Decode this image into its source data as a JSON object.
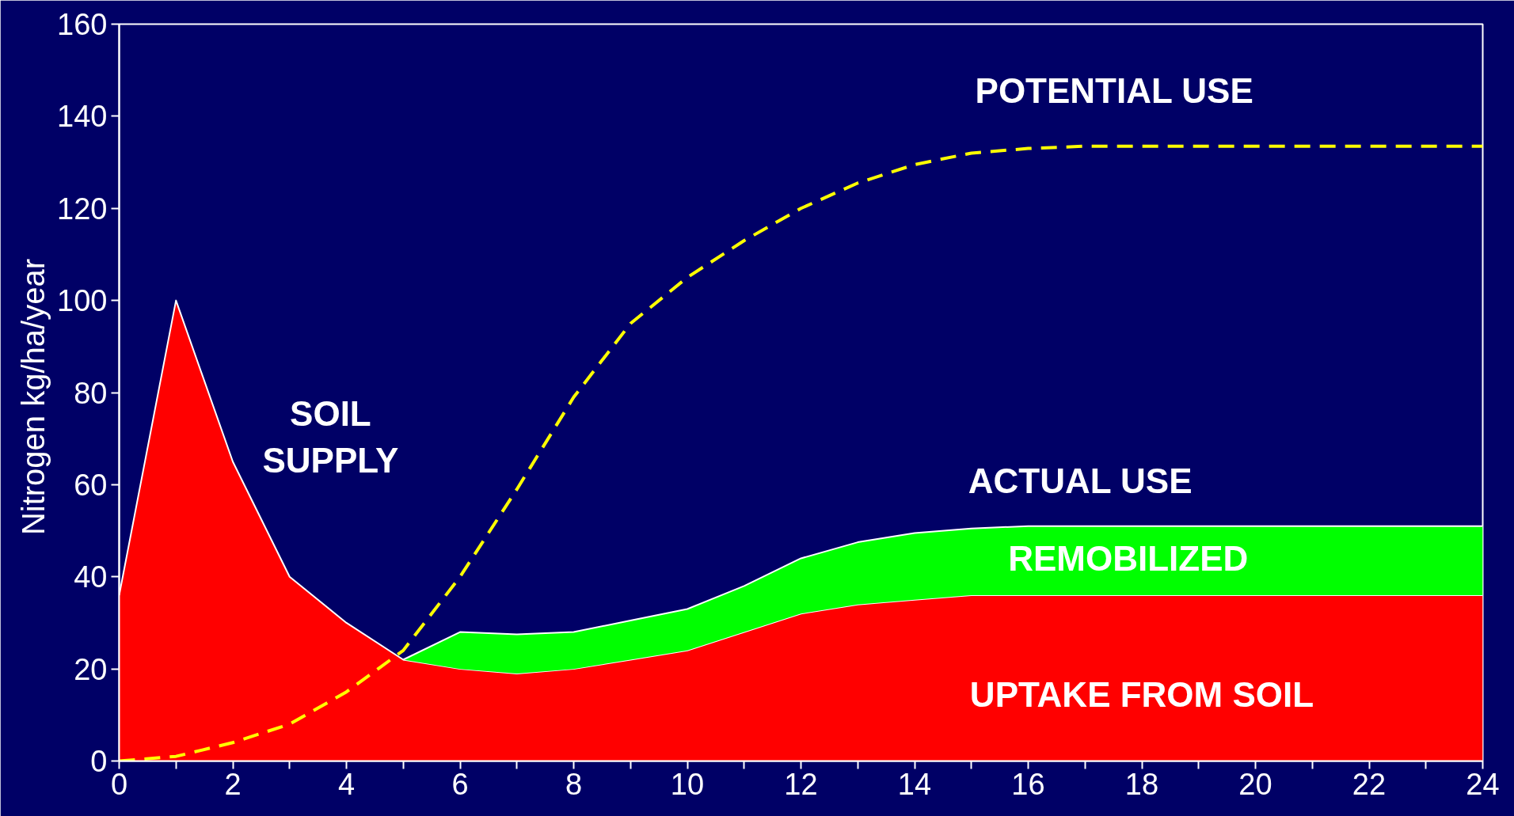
{
  "chart_data": {
    "type": "area",
    "ylabel": "Nitrogen  kg/ha/year",
    "x": [
      0,
      1,
      2,
      3,
      4,
      5,
      6,
      7,
      8,
      9,
      10,
      11,
      12,
      13,
      14,
      15,
      16,
      17,
      18,
      19,
      20,
      21,
      22,
      23,
      24
    ],
    "stacked": true,
    "series": [
      {
        "color": "#ff0000",
        "values": [
          36,
          100,
          65,
          40,
          30,
          22,
          20,
          19,
          20,
          22,
          24,
          28,
          32,
          34,
          35,
          36,
          36,
          36,
          36,
          36,
          36,
          36,
          36,
          36,
          36
        ]
      },
      {
        "color": "#00ff00",
        "values": [
          null,
          null,
          null,
          null,
          null,
          0,
          8,
          8.5,
          8,
          8.5,
          9,
          10,
          12,
          13.5,
          14.5,
          14.5,
          15,
          15,
          15,
          15,
          15,
          15,
          15,
          15,
          15
        ]
      },
      {
        "type": "line",
        "color": "#ffff00",
        "line_style": "dashed",
        "values": [
          0,
          1,
          4,
          8,
          15,
          24,
          40,
          59,
          79,
          95,
          105,
          113,
          120,
          125.5,
          129.5,
          132,
          133,
          133.5,
          133.5,
          133.5,
          133.5,
          133.5,
          133.5,
          133.5,
          133.5
        ]
      }
    ],
    "xlim": [
      0,
      24
    ],
    "ylim": [
      0,
      160
    ],
    "xticks": [
      0,
      {
        "value": 1,
        "label": null
      },
      2,
      {
        "value": 3,
        "label": null
      },
      4,
      {
        "value": 5,
        "label": null
      },
      6,
      {
        "value": 7,
        "label": null
      },
      8,
      {
        "value": 9,
        "label": null
      },
      10,
      {
        "value": 11,
        "label": null
      },
      12,
      {
        "value": 13,
        "label": null
      },
      14,
      {
        "value": 15,
        "label": null
      },
      16,
      {
        "value": 17,
        "label": null
      },
      18,
      {
        "value": 19,
        "label": null
      },
      20,
      {
        "value": 21,
        "label": null
      },
      22,
      {
        "value": 23,
        "label": null
      },
      24
    ],
    "yticks": [
      0,
      20,
      40,
      60,
      80,
      100,
      120,
      140,
      160
    ],
    "grid": false,
    "annotations": [
      "POTENTIAL USE",
      "SOIL\nSUPPLY",
      "ACTUAL USE",
      "REMOBILIZED",
      "UPTAKE FROM SOIL"
    ]
  }
}
